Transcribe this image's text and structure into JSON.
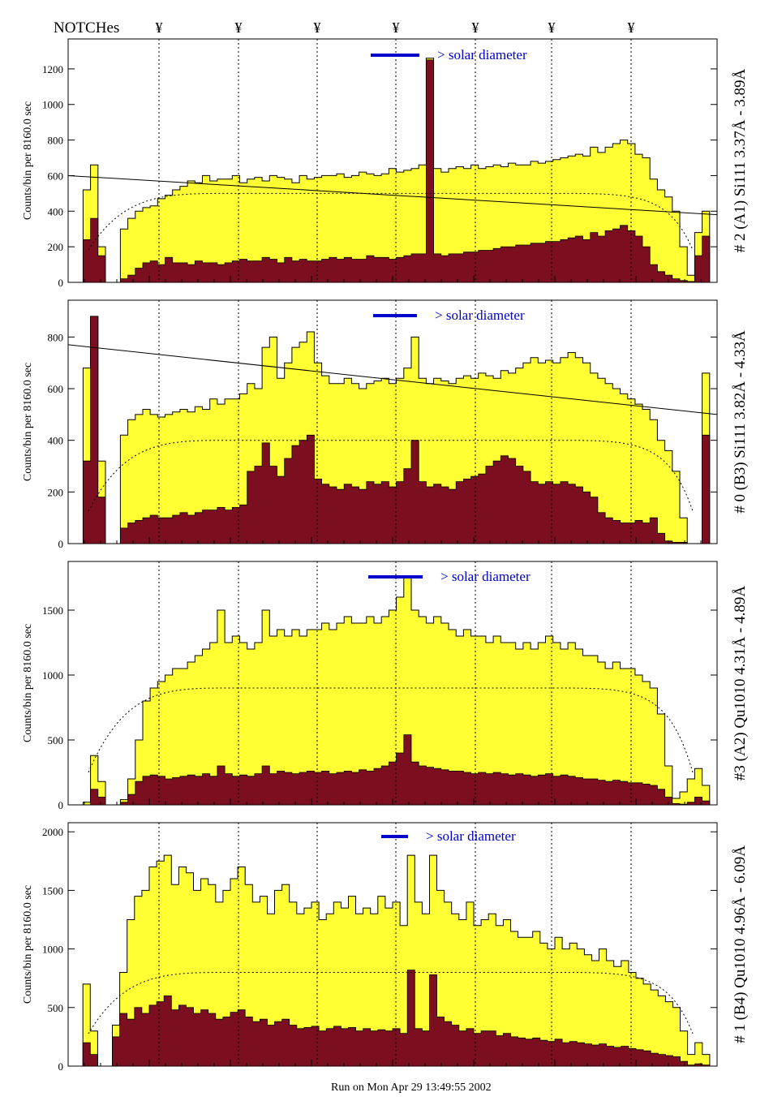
{
  "header": {
    "notches_label": "NOTCHes",
    "notch_symbol": "¥"
  },
  "footer": {
    "run_text": "Run on Mon Apr 29 13:49:55 2002"
  },
  "colors": {
    "total": "#ffff33",
    "background": "#7b0f1f",
    "solar_bar": "#0000cc",
    "axes": "#000000"
  },
  "chart_data": [
    {
      "type": "area",
      "panel": "#2 (A1) Si111 3.37Å-3.89Å",
      "ylabel": "Counts/bin per   8160.0 sec",
      "right_label": "# 2 (A1) Si111  3.37Å - 3.89Å",
      "solar_label": "> solar diameter",
      "ylim": [
        0,
        1350
      ],
      "yticks": [
        0,
        200,
        400,
        600,
        800,
        1000,
        1200
      ],
      "series": [
        {
          "values_total": [
            0,
            0,
            520,
            660,
            200,
            0,
            0,
            300,
            360,
            400,
            420,
            430,
            470,
            490,
            520,
            540,
            570,
            560,
            600,
            570,
            580,
            580,
            600,
            560,
            580,
            590,
            570,
            600,
            590,
            580,
            560,
            600,
            580,
            590,
            600,
            600,
            610,
            590,
            600,
            620,
            610,
            600,
            610,
            640,
            620,
            630,
            640,
            660,
            1260,
            640,
            620,
            640,
            650,
            640,
            660,
            640,
            650,
            660,
            650,
            670,
            660,
            660,
            680,
            670,
            680,
            690,
            700,
            710,
            720,
            710,
            760,
            730,
            760,
            780,
            800,
            780,
            720,
            700,
            580,
            520,
            480,
            400,
            200,
            40,
            280,
            400,
            0
          ],
          "values_background": [
            0,
            0,
            240,
            360,
            150,
            0,
            0,
            20,
            40,
            80,
            110,
            120,
            100,
            140,
            110,
            110,
            100,
            120,
            110,
            110,
            100,
            110,
            120,
            130,
            120,
            120,
            140,
            130,
            110,
            140,
            120,
            130,
            120,
            120,
            130,
            140,
            130,
            140,
            130,
            130,
            150,
            140,
            140,
            130,
            140,
            150,
            160,
            160,
            1250,
            160,
            150,
            160,
            160,
            170,
            170,
            180,
            180,
            190,
            200,
            200,
            210,
            210,
            220,
            220,
            230,
            230,
            240,
            250,
            260,
            240,
            280,
            260,
            290,
            300,
            320,
            290,
            260,
            200,
            100,
            60,
            40,
            20,
            10,
            5,
            150,
            260,
            0
          ]
        }
      ],
      "fit_line": {
        "x": [
          0,
          1
        ],
        "y": [
          600,
          380
        ]
      },
      "dotted_curve_level": 500
    },
    {
      "type": "area",
      "panel": "#0 (B3) Si111 3.82Å-4.33Å",
      "ylabel": "Counts/bin per   8160.0 sec",
      "right_label": "# 0 (B3) Si111  3.82Å - 4.33Å",
      "solar_label": "> solar diameter",
      "ylim": [
        0,
        930
      ],
      "yticks": [
        0,
        200,
        400,
        600,
        800
      ],
      "series": [
        {
          "values_total": [
            0,
            0,
            680,
            880,
            320,
            0,
            0,
            420,
            480,
            500,
            520,
            500,
            490,
            500,
            510,
            520,
            510,
            530,
            520,
            560,
            540,
            560,
            560,
            580,
            620,
            600,
            760,
            800,
            640,
            700,
            760,
            780,
            820,
            700,
            650,
            620,
            620,
            640,
            620,
            600,
            620,
            630,
            640,
            620,
            640,
            680,
            800,
            640,
            620,
            640,
            630,
            620,
            640,
            650,
            640,
            660,
            650,
            640,
            670,
            660,
            680,
            700,
            720,
            700,
            710,
            700,
            720,
            740,
            720,
            700,
            660,
            640,
            620,
            600,
            580,
            560,
            540,
            520,
            480,
            400,
            360,
            280,
            100,
            0,
            0,
            660,
            0
          ],
          "values_background": [
            0,
            0,
            320,
            880,
            180,
            0,
            0,
            60,
            80,
            90,
            100,
            110,
            100,
            100,
            110,
            120,
            110,
            120,
            130,
            130,
            140,
            130,
            140,
            150,
            280,
            300,
            390,
            300,
            260,
            330,
            380,
            400,
            420,
            250,
            230,
            220,
            210,
            230,
            220,
            210,
            240,
            230,
            240,
            220,
            240,
            290,
            400,
            240,
            220,
            230,
            220,
            210,
            240,
            250,
            260,
            270,
            300,
            320,
            340,
            330,
            300,
            280,
            240,
            230,
            240,
            230,
            240,
            230,
            220,
            200,
            180,
            120,
            100,
            90,
            80,
            80,
            90,
            80,
            100,
            40,
            10,
            5,
            5,
            0,
            0,
            420,
            0
          ]
        }
      ],
      "fit_line": {
        "x": [
          0,
          1
        ],
        "y": [
          770,
          500
        ]
      },
      "dotted_curve_level": 400
    },
    {
      "type": "area",
      "panel": "#3 (A2) Qu1010 4.31Å-4.89Å",
      "ylabel": "Counts/bin per   8160.0 sec",
      "right_label": "#3 (A2) Qu1010  4.31Å - 4.89Å",
      "solar_label": "> solar diameter",
      "ylim": [
        0,
        1850
      ],
      "yticks": [
        0,
        500,
        1000,
        1500
      ],
      "series": [
        {
          "values_total": [
            0,
            0,
            20,
            380,
            180,
            0,
            0,
            40,
            200,
            500,
            800,
            900,
            950,
            1000,
            1050,
            1050,
            1100,
            1150,
            1200,
            1250,
            1500,
            1250,
            1300,
            1250,
            1200,
            1250,
            1500,
            1300,
            1350,
            1300,
            1350,
            1300,
            1350,
            1350,
            1400,
            1350,
            1400,
            1450,
            1400,
            1400,
            1450,
            1400,
            1450,
            1500,
            1600,
            1750,
            1500,
            1450,
            1400,
            1450,
            1400,
            1350,
            1300,
            1350,
            1300,
            1300,
            1250,
            1300,
            1250,
            1250,
            1200,
            1250,
            1200,
            1250,
            1300,
            1250,
            1200,
            1250,
            1200,
            1150,
            1150,
            1100,
            1050,
            1100,
            1050,
            1050,
            1000,
            950,
            900,
            700,
            300,
            50,
            100,
            200,
            280,
            150,
            0
          ],
          "values_background": [
            0,
            0,
            0,
            120,
            60,
            0,
            0,
            20,
            80,
            180,
            220,
            230,
            220,
            200,
            210,
            220,
            230,
            220,
            240,
            220,
            300,
            240,
            220,
            230,
            220,
            240,
            300,
            240,
            260,
            250,
            240,
            250,
            260,
            250,
            260,
            240,
            250,
            260,
            250,
            270,
            260,
            280,
            300,
            330,
            400,
            540,
            330,
            300,
            290,
            280,
            270,
            260,
            260,
            250,
            240,
            250,
            240,
            250,
            240,
            230,
            240,
            230,
            220,
            230,
            240,
            220,
            230,
            220,
            210,
            200,
            200,
            190,
            180,
            190,
            180,
            170,
            170,
            160,
            150,
            120,
            60,
            10,
            5,
            20,
            60,
            30,
            0
          ]
        }
      ],
      "dotted_curve_level": 900
    },
    {
      "type": "area",
      "panel": "#1 (B4) Qu1010 4.96Å-6.09Å",
      "ylabel": "Counts/bin per   8160.0 sec",
      "right_label": "# 1 (B4) Qu1010 4.96Å - 6.09Å",
      "solar_label": "> solar diameter",
      "ylim": [
        0,
        2050
      ],
      "yticks": [
        0,
        500,
        1000,
        1500,
        2000
      ],
      "series": [
        {
          "values_total": [
            0,
            0,
            700,
            300,
            0,
            0,
            350,
            800,
            1250,
            1450,
            1500,
            1700,
            1750,
            1800,
            1550,
            1700,
            1650,
            1500,
            1600,
            1550,
            1400,
            1500,
            1600,
            1700,
            1550,
            1400,
            1450,
            1300,
            1500,
            1550,
            1400,
            1300,
            1350,
            1400,
            1250,
            1300,
            1400,
            1350,
            1450,
            1300,
            1350,
            1300,
            1450,
            1350,
            1400,
            1200,
            1800,
            1400,
            1300,
            1800,
            1500,
            1400,
            1300,
            1250,
            1400,
            1200,
            1250,
            1300,
            1200,
            1250,
            1150,
            1100,
            1100,
            1150,
            1050,
            1000,
            1100,
            1000,
            1050,
            1000,
            950,
            900,
            1000,
            900,
            850,
            900,
            800,
            750,
            700,
            650,
            600,
            550,
            500,
            300,
            100,
            200,
            100,
            0
          ],
          "values_background": [
            0,
            0,
            200,
            100,
            0,
            0,
            250,
            450,
            400,
            500,
            450,
            520,
            550,
            600,
            480,
            520,
            500,
            450,
            480,
            450,
            400,
            420,
            460,
            480,
            420,
            380,
            400,
            350,
            380,
            400,
            350,
            320,
            330,
            340,
            300,
            320,
            340,
            320,
            330,
            300,
            320,
            300,
            310,
            300,
            320,
            280,
            820,
            320,
            300,
            780,
            420,
            380,
            350,
            300,
            320,
            280,
            300,
            300,
            260,
            280,
            250,
            240,
            230,
            240,
            220,
            210,
            230,
            200,
            210,
            200,
            190,
            180,
            190,
            170,
            160,
            170,
            150,
            140,
            130,
            110,
            100,
            90,
            80,
            40,
            10,
            20,
            10,
            0
          ]
        }
      ],
      "dotted_curve_level": 800
    }
  ]
}
